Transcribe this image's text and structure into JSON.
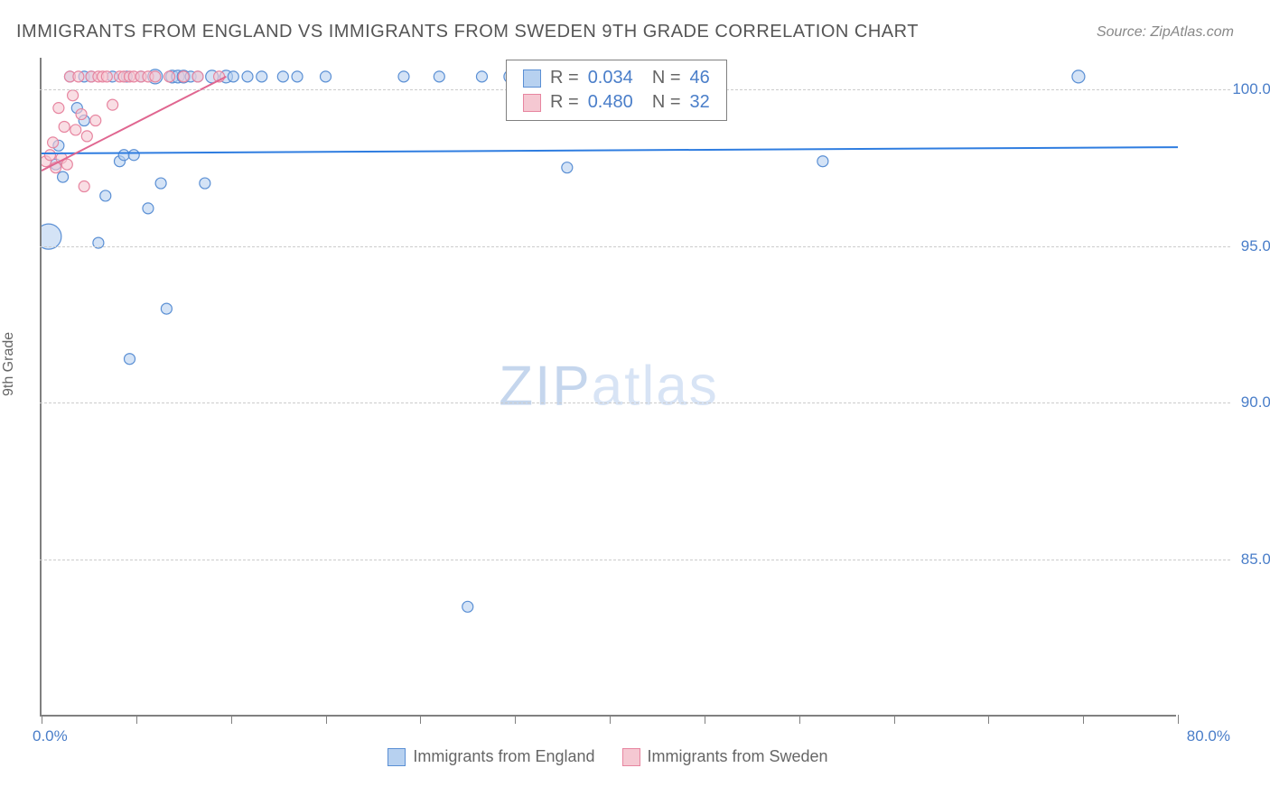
{
  "title": "IMMIGRANTS FROM ENGLAND VS IMMIGRANTS FROM SWEDEN 9TH GRADE CORRELATION CHART",
  "source": "Source: ZipAtlas.com",
  "watermark": {
    "bold": "ZIP",
    "light": "atlas"
  },
  "y_axis_title": "9th Grade",
  "chart": {
    "type": "scatter-correlation",
    "background_color": "#ffffff",
    "grid_color": "#cccccc",
    "axis_color": "#808080",
    "text_color": "#666666",
    "value_color": "#4a7ec9",
    "xlim": [
      0,
      80
    ],
    "ylim": [
      80,
      101
    ],
    "x_ticks": [
      0,
      6.67,
      13.33,
      20,
      26.67,
      33.33,
      40,
      46.67,
      53.33,
      60,
      66.67,
      73.33,
      80
    ],
    "x_tick_labels": {
      "start": "0.0%",
      "end": "80.0%"
    },
    "y_gridlines": [
      85,
      90,
      95,
      100
    ],
    "y_tick_labels": [
      "85.0%",
      "90.0%",
      "95.0%",
      "100.0%"
    ],
    "series": [
      {
        "name": "Immigrants from England",
        "color_fill": "#b7d1f0",
        "color_stroke": "#5a8fd4",
        "r_value": "0.034",
        "n_value": "46",
        "regression": {
          "x1": 0,
          "y1": 97.95,
          "x2": 80,
          "y2": 98.15,
          "color": "#2f7de0",
          "width": 2
        },
        "points": [
          {
            "x": 0.5,
            "y": 95.3,
            "r": 14
          },
          {
            "x": 1,
            "y": 97.6,
            "r": 6
          },
          {
            "x": 1.2,
            "y": 98.2,
            "r": 6
          },
          {
            "x": 1.5,
            "y": 97.2,
            "r": 6
          },
          {
            "x": 2,
            "y": 100.4,
            "r": 6
          },
          {
            "x": 2.5,
            "y": 99.4,
            "r": 6
          },
          {
            "x": 3,
            "y": 100.4,
            "r": 6
          },
          {
            "x": 3,
            "y": 99.0,
            "r": 6
          },
          {
            "x": 3.5,
            "y": 100.4,
            "r": 6
          },
          {
            "x": 4,
            "y": 95.1,
            "r": 6
          },
          {
            "x": 4.5,
            "y": 96.6,
            "r": 6
          },
          {
            "x": 5,
            "y": 100.4,
            "r": 6
          },
          {
            "x": 5.5,
            "y": 97.7,
            "r": 6
          },
          {
            "x": 5.8,
            "y": 97.9,
            "r": 6
          },
          {
            "x": 6,
            "y": 100.4,
            "r": 6
          },
          {
            "x": 6.2,
            "y": 91.4,
            "r": 6
          },
          {
            "x": 6.5,
            "y": 97.9,
            "r": 6
          },
          {
            "x": 7,
            "y": 100.4,
            "r": 6
          },
          {
            "x": 7.5,
            "y": 96.2,
            "r": 6
          },
          {
            "x": 8,
            "y": 100.4,
            "r": 8
          },
          {
            "x": 8.4,
            "y": 97.0,
            "r": 6
          },
          {
            "x": 8.8,
            "y": 93.0,
            "r": 6
          },
          {
            "x": 9.2,
            "y": 100.4,
            "r": 7
          },
          {
            "x": 9.6,
            "y": 100.4,
            "r": 7
          },
          {
            "x": 10,
            "y": 100.4,
            "r": 7
          },
          {
            "x": 10.5,
            "y": 100.4,
            "r": 6
          },
          {
            "x": 11,
            "y": 100.4,
            "r": 6
          },
          {
            "x": 11.5,
            "y": 97.0,
            "r": 6
          },
          {
            "x": 12,
            "y": 100.4,
            "r": 7
          },
          {
            "x": 13,
            "y": 100.4,
            "r": 7
          },
          {
            "x": 13.5,
            "y": 100.4,
            "r": 6
          },
          {
            "x": 14.5,
            "y": 100.4,
            "r": 6
          },
          {
            "x": 15.5,
            "y": 100.4,
            "r": 6
          },
          {
            "x": 17,
            "y": 100.4,
            "r": 6
          },
          {
            "x": 18,
            "y": 100.4,
            "r": 6
          },
          {
            "x": 20,
            "y": 100.4,
            "r": 6
          },
          {
            "x": 25.5,
            "y": 100.4,
            "r": 6
          },
          {
            "x": 28,
            "y": 100.4,
            "r": 6
          },
          {
            "x": 30,
            "y": 83.5,
            "r": 6
          },
          {
            "x": 31,
            "y": 100.4,
            "r": 6
          },
          {
            "x": 33,
            "y": 100.4,
            "r": 7
          },
          {
            "x": 37,
            "y": 97.5,
            "r": 6
          },
          {
            "x": 55,
            "y": 97.7,
            "r": 6
          },
          {
            "x": 73,
            "y": 100.4,
            "r": 7
          }
        ]
      },
      {
        "name": "Immigrants from Sweden",
        "color_fill": "#f5c8d2",
        "color_stroke": "#e785a0",
        "r_value": "0.480",
        "n_value": "32",
        "regression": {
          "x1": 0,
          "y1": 97.4,
          "x2": 13,
          "y2": 100.4,
          "color": "#e06690",
          "width": 2
        },
        "points": [
          {
            "x": 0.3,
            "y": 97.7,
            "r": 6
          },
          {
            "x": 0.6,
            "y": 97.9,
            "r": 6
          },
          {
            "x": 0.8,
            "y": 98.3,
            "r": 6
          },
          {
            "x": 1.0,
            "y": 97.5,
            "r": 6
          },
          {
            "x": 1.2,
            "y": 99.4,
            "r": 6
          },
          {
            "x": 1.4,
            "y": 97.8,
            "r": 6
          },
          {
            "x": 1.6,
            "y": 98.8,
            "r": 6
          },
          {
            "x": 1.8,
            "y": 97.6,
            "r": 6
          },
          {
            "x": 2.0,
            "y": 100.4,
            "r": 6
          },
          {
            "x": 2.2,
            "y": 99.8,
            "r": 6
          },
          {
            "x": 2.4,
            "y": 98.7,
            "r": 6
          },
          {
            "x": 2.6,
            "y": 100.4,
            "r": 6
          },
          {
            "x": 2.8,
            "y": 99.2,
            "r": 6
          },
          {
            "x": 3.0,
            "y": 96.9,
            "r": 6
          },
          {
            "x": 3.2,
            "y": 98.5,
            "r": 6
          },
          {
            "x": 3.5,
            "y": 100.4,
            "r": 6
          },
          {
            "x": 3.8,
            "y": 99.0,
            "r": 6
          },
          {
            "x": 4.0,
            "y": 100.4,
            "r": 6
          },
          {
            "x": 4.3,
            "y": 100.4,
            "r": 6
          },
          {
            "x": 4.6,
            "y": 100.4,
            "r": 6
          },
          {
            "x": 5.0,
            "y": 99.5,
            "r": 6
          },
          {
            "x": 5.5,
            "y": 100.4,
            "r": 6
          },
          {
            "x": 5.8,
            "y": 100.4,
            "r": 6
          },
          {
            "x": 6.2,
            "y": 100.4,
            "r": 6
          },
          {
            "x": 6.5,
            "y": 100.4,
            "r": 6
          },
          {
            "x": 7.0,
            "y": 100.4,
            "r": 6
          },
          {
            "x": 7.5,
            "y": 100.4,
            "r": 6
          },
          {
            "x": 8.0,
            "y": 100.4,
            "r": 6
          },
          {
            "x": 9.0,
            "y": 100.4,
            "r": 6
          },
          {
            "x": 10.0,
            "y": 100.4,
            "r": 6
          },
          {
            "x": 11.0,
            "y": 100.4,
            "r": 6
          },
          {
            "x": 12.5,
            "y": 100.4,
            "r": 6
          }
        ]
      }
    ]
  },
  "legend_bottom": [
    {
      "label": "Immigrants from England",
      "fill": "#b7d1f0",
      "stroke": "#5a8fd4"
    },
    {
      "label": "Immigrants from Sweden",
      "fill": "#f5c8d2",
      "stroke": "#e785a0"
    }
  ]
}
